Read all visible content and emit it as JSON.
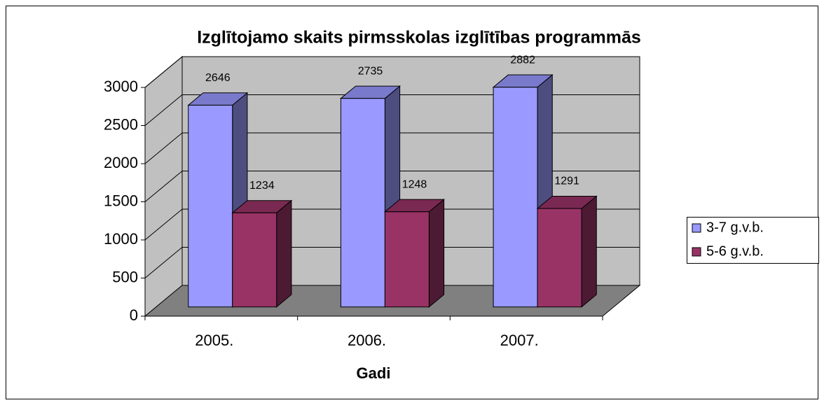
{
  "chart_data": {
    "type": "bar",
    "title": "Izglītojamo skaits pirmsskolas izglītības programmās",
    "x_label": "Gadi",
    "categories": [
      "2005.",
      "2006.",
      "2007."
    ],
    "series": [
      {
        "name": "3-7 g.v.b.",
        "color": "#9999ff",
        "values": [
          2646,
          2735,
          2882
        ]
      },
      {
        "name": "5-6 g.v.b.",
        "color": "#993366",
        "values": [
          1234,
          1248,
          1291
        ]
      }
    ],
    "ylim": [
      0,
      3000
    ],
    "yticks": [
      0,
      500,
      1000,
      1500,
      2000,
      2500,
      3000
    ],
    "grid": true,
    "legend": "right"
  }
}
